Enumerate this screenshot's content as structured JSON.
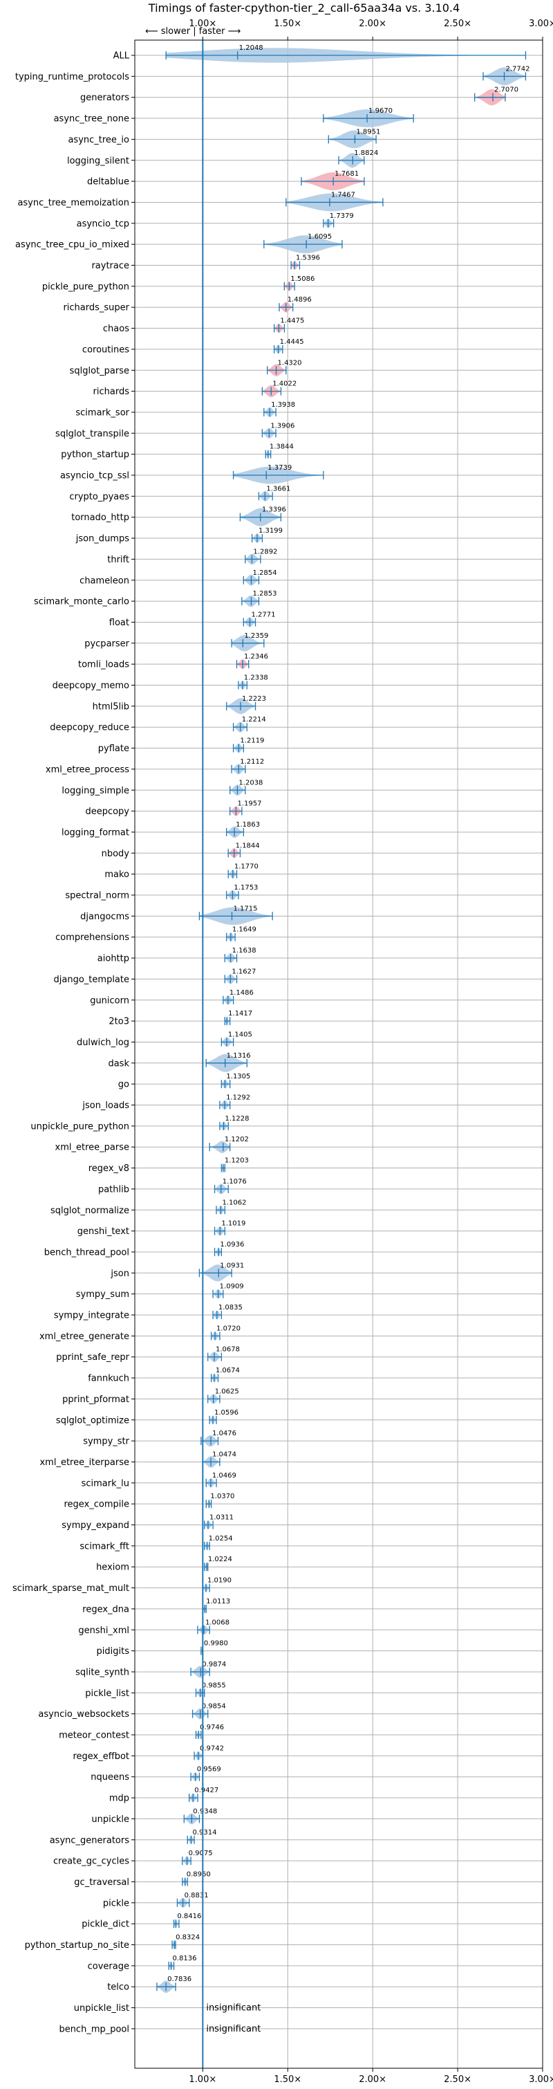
{
  "chart_data": {
    "type": "violin",
    "title": "Timings of faster-cpython-tier_2_call-65aa34a vs. 3.10.4",
    "direction_label": "⟵ slower | faster ⟶",
    "x_ticks": [
      "1.00×",
      "1.50×",
      "2.00×",
      "2.50×",
      "3.00×"
    ],
    "x_tick_values": [
      1.0,
      1.5,
      2.0,
      2.5,
      3.0
    ],
    "xlim": [
      0.6,
      3.0
    ],
    "reference_line": 1.0,
    "grid": true,
    "colors": {
      "faster": "#a9c8e4",
      "slower": "#f4aab4",
      "line": "#1f77b4",
      "grid": "#b0b0b0"
    },
    "benchmarks": [
      {
        "name": "ALL",
        "value": 1.2048,
        "label": "1.2048",
        "min": 0.7836,
        "max": 2.9,
        "color": "blue"
      },
      {
        "name": "typing_runtime_protocols",
        "value": 2.7742,
        "label": "2.7742",
        "min": 2.65,
        "max": 2.9,
        "color": "blue"
      },
      {
        "name": "generators",
        "value": 2.707,
        "label": "2.7070",
        "min": 2.6,
        "max": 2.78,
        "color": "red"
      },
      {
        "name": "async_tree_none",
        "value": 1.967,
        "label": "1.9670",
        "min": 1.71,
        "max": 2.24,
        "color": "blue"
      },
      {
        "name": "async_tree_io",
        "value": 1.8951,
        "label": "1.8951",
        "min": 1.74,
        "max": 2.02,
        "color": "blue"
      },
      {
        "name": "logging_silent",
        "value": 1.8824,
        "label": "1.8824",
        "min": 1.8,
        "max": 1.95,
        "color": "blue"
      },
      {
        "name": "deltablue",
        "value": 1.7681,
        "label": "1.7681",
        "min": 1.58,
        "max": 1.95,
        "color": "red"
      },
      {
        "name": "async_tree_memoization",
        "value": 1.7467,
        "label": "1.7467",
        "min": 1.49,
        "max": 2.06,
        "color": "blue"
      },
      {
        "name": "asyncio_tcp",
        "value": 1.7379,
        "label": "1.7379",
        "min": 1.71,
        "max": 1.77,
        "color": "blue"
      },
      {
        "name": "async_tree_cpu_io_mixed",
        "value": 1.6095,
        "label": "1.6095",
        "min": 1.36,
        "max": 1.82,
        "color": "blue"
      },
      {
        "name": "raytrace",
        "value": 1.5396,
        "label": "1.5396",
        "min": 1.52,
        "max": 1.57,
        "color": "red"
      },
      {
        "name": "pickle_pure_python",
        "value": 1.5086,
        "label": "1.5086",
        "min": 1.48,
        "max": 1.54,
        "color": "red"
      },
      {
        "name": "richards_super",
        "value": 1.4896,
        "label": "1.4896",
        "min": 1.45,
        "max": 1.53,
        "color": "red"
      },
      {
        "name": "chaos",
        "value": 1.4475,
        "label": "1.4475",
        "min": 1.42,
        "max": 1.48,
        "color": "red"
      },
      {
        "name": "coroutines",
        "value": 1.4445,
        "label": "1.4445",
        "min": 1.42,
        "max": 1.47,
        "color": "blue"
      },
      {
        "name": "sqlglot_parse",
        "value": 1.432,
        "label": "1.4320",
        "min": 1.38,
        "max": 1.49,
        "color": "red"
      },
      {
        "name": "richards",
        "value": 1.4022,
        "label": "1.4022",
        "min": 1.35,
        "max": 1.46,
        "color": "red"
      },
      {
        "name": "scimark_sor",
        "value": 1.3938,
        "label": "1.3938",
        "min": 1.36,
        "max": 1.43,
        "color": "blue"
      },
      {
        "name": "sqlglot_transpile",
        "value": 1.3906,
        "label": "1.3906",
        "min": 1.35,
        "max": 1.43,
        "color": "blue"
      },
      {
        "name": "python_startup",
        "value": 1.3844,
        "label": "1.3844",
        "min": 1.37,
        "max": 1.4,
        "color": "blue"
      },
      {
        "name": "asyncio_tcp_ssl",
        "value": 1.3739,
        "label": "1.3739",
        "min": 1.18,
        "max": 1.71,
        "color": "blue"
      },
      {
        "name": "crypto_pyaes",
        "value": 1.3661,
        "label": "1.3661",
        "min": 1.33,
        "max": 1.41,
        "color": "blue"
      },
      {
        "name": "tornado_http",
        "value": 1.3396,
        "label": "1.3396",
        "min": 1.22,
        "max": 1.46,
        "color": "blue"
      },
      {
        "name": "json_dumps",
        "value": 1.3199,
        "label": "1.3199",
        "min": 1.29,
        "max": 1.35,
        "color": "blue"
      },
      {
        "name": "thrift",
        "value": 1.2892,
        "label": "1.2892",
        "min": 1.25,
        "max": 1.34,
        "color": "blue"
      },
      {
        "name": "chameleon",
        "value": 1.2854,
        "label": "1.2854",
        "min": 1.24,
        "max": 1.33,
        "color": "blue"
      },
      {
        "name": "scimark_monte_carlo",
        "value": 1.2853,
        "label": "1.2853",
        "min": 1.23,
        "max": 1.33,
        "color": "blue"
      },
      {
        "name": "float",
        "value": 1.2771,
        "label": "1.2771",
        "min": 1.24,
        "max": 1.31,
        "color": "blue"
      },
      {
        "name": "pycparser",
        "value": 1.2359,
        "label": "1.2359",
        "min": 1.17,
        "max": 1.36,
        "color": "blue"
      },
      {
        "name": "tomli_loads",
        "value": 1.2346,
        "label": "1.2346",
        "min": 1.2,
        "max": 1.27,
        "color": "red"
      },
      {
        "name": "deepcopy_memo",
        "value": 1.2338,
        "label": "1.2338",
        "min": 1.21,
        "max": 1.26,
        "color": "blue"
      },
      {
        "name": "html5lib",
        "value": 1.2223,
        "label": "1.2223",
        "min": 1.14,
        "max": 1.31,
        "color": "blue"
      },
      {
        "name": "deepcopy_reduce",
        "value": 1.2214,
        "label": "1.2214",
        "min": 1.18,
        "max": 1.26,
        "color": "blue"
      },
      {
        "name": "pyflate",
        "value": 1.2119,
        "label": "1.2119",
        "min": 1.18,
        "max": 1.24,
        "color": "blue"
      },
      {
        "name": "xml_etree_process",
        "value": 1.2112,
        "label": "1.2112",
        "min": 1.17,
        "max": 1.25,
        "color": "blue"
      },
      {
        "name": "logging_simple",
        "value": 1.2038,
        "label": "1.2038",
        "min": 1.16,
        "max": 1.25,
        "color": "blue"
      },
      {
        "name": "deepcopy",
        "value": 1.1957,
        "label": "1.1957",
        "min": 1.16,
        "max": 1.23,
        "color": "red"
      },
      {
        "name": "logging_format",
        "value": 1.1863,
        "label": "1.1863",
        "min": 1.14,
        "max": 1.24,
        "color": "blue"
      },
      {
        "name": "nbody",
        "value": 1.1844,
        "label": "1.1844",
        "min": 1.15,
        "max": 1.22,
        "color": "red"
      },
      {
        "name": "mako",
        "value": 1.177,
        "label": "1.1770",
        "min": 1.15,
        "max": 1.2,
        "color": "blue"
      },
      {
        "name": "spectral_norm",
        "value": 1.1753,
        "label": "1.1753",
        "min": 1.14,
        "max": 1.21,
        "color": "blue"
      },
      {
        "name": "djangocms",
        "value": 1.1715,
        "label": "1.1715",
        "min": 0.98,
        "max": 1.41,
        "color": "blue"
      },
      {
        "name": "comprehensions",
        "value": 1.1649,
        "label": "1.1649",
        "min": 1.14,
        "max": 1.19,
        "color": "blue"
      },
      {
        "name": "aiohttp",
        "value": 1.1638,
        "label": "1.1638",
        "min": 1.13,
        "max": 1.2,
        "color": "blue"
      },
      {
        "name": "django_template",
        "value": 1.1627,
        "label": "1.1627",
        "min": 1.13,
        "max": 1.2,
        "color": "blue"
      },
      {
        "name": "gunicorn",
        "value": 1.1486,
        "label": "1.1486",
        "min": 1.12,
        "max": 1.18,
        "color": "blue"
      },
      {
        "name": "2to3",
        "value": 1.1417,
        "label": "1.1417",
        "min": 1.13,
        "max": 1.16,
        "color": "blue"
      },
      {
        "name": "dulwich_log",
        "value": 1.1405,
        "label": "1.1405",
        "min": 1.11,
        "max": 1.18,
        "color": "blue"
      },
      {
        "name": "dask",
        "value": 1.1316,
        "label": "1.1316",
        "min": 1.02,
        "max": 1.26,
        "color": "blue"
      },
      {
        "name": "go",
        "value": 1.1305,
        "label": "1.1305",
        "min": 1.11,
        "max": 1.16,
        "color": "blue"
      },
      {
        "name": "json_loads",
        "value": 1.1292,
        "label": "1.1292",
        "min": 1.1,
        "max": 1.16,
        "color": "blue"
      },
      {
        "name": "unpickle_pure_python",
        "value": 1.1228,
        "label": "1.1228",
        "min": 1.1,
        "max": 1.15,
        "color": "blue"
      },
      {
        "name": "xml_etree_parse",
        "value": 1.1202,
        "label": "1.1202",
        "min": 1.04,
        "max": 1.16,
        "color": "blue"
      },
      {
        "name": "regex_v8",
        "value": 1.1203,
        "label": "1.1203",
        "min": 1.11,
        "max": 1.13,
        "color": "blue"
      },
      {
        "name": "pathlib",
        "value": 1.1076,
        "label": "1.1076",
        "min": 1.07,
        "max": 1.15,
        "color": "blue"
      },
      {
        "name": "sqlglot_normalize",
        "value": 1.1062,
        "label": "1.1062",
        "min": 1.08,
        "max": 1.13,
        "color": "blue"
      },
      {
        "name": "genshi_text",
        "value": 1.1019,
        "label": "1.1019",
        "min": 1.07,
        "max": 1.13,
        "color": "blue"
      },
      {
        "name": "bench_thread_pool",
        "value": 1.0936,
        "label": "1.0936",
        "min": 1.07,
        "max": 1.11,
        "color": "blue"
      },
      {
        "name": "json",
        "value": 1.0931,
        "label": "1.0931",
        "min": 0.98,
        "max": 1.17,
        "color": "blue"
      },
      {
        "name": "sympy_sum",
        "value": 1.0909,
        "label": "1.0909",
        "min": 1.06,
        "max": 1.12,
        "color": "blue"
      },
      {
        "name": "sympy_integrate",
        "value": 1.0835,
        "label": "1.0835",
        "min": 1.06,
        "max": 1.11,
        "color": "blue"
      },
      {
        "name": "xml_etree_generate",
        "value": 1.072,
        "label": "1.0720",
        "min": 1.05,
        "max": 1.1,
        "color": "blue"
      },
      {
        "name": "pprint_safe_repr",
        "value": 1.0678,
        "label": "1.0678",
        "min": 1.03,
        "max": 1.11,
        "color": "blue"
      },
      {
        "name": "fannkuch",
        "value": 1.0674,
        "label": "1.0674",
        "min": 1.05,
        "max": 1.09,
        "color": "blue"
      },
      {
        "name": "pprint_pformat",
        "value": 1.0625,
        "label": "1.0625",
        "min": 1.03,
        "max": 1.1,
        "color": "blue"
      },
      {
        "name": "sqlglot_optimize",
        "value": 1.0596,
        "label": "1.0596",
        "min": 1.04,
        "max": 1.08,
        "color": "blue"
      },
      {
        "name": "sympy_str",
        "value": 1.0476,
        "label": "1.0476",
        "min": 0.99,
        "max": 1.09,
        "color": "blue"
      },
      {
        "name": "xml_etree_iterparse",
        "value": 1.0474,
        "label": "1.0474",
        "min": 1.0,
        "max": 1.1,
        "color": "blue"
      },
      {
        "name": "scimark_lu",
        "value": 1.0469,
        "label": "1.0469",
        "min": 1.02,
        "max": 1.08,
        "color": "blue"
      },
      {
        "name": "regex_compile",
        "value": 1.037,
        "label": "1.0370",
        "min": 1.02,
        "max": 1.05,
        "color": "blue"
      },
      {
        "name": "sympy_expand",
        "value": 1.0311,
        "label": "1.0311",
        "min": 1.01,
        "max": 1.06,
        "color": "blue"
      },
      {
        "name": "scimark_fft",
        "value": 1.0254,
        "label": "1.0254",
        "min": 1.01,
        "max": 1.04,
        "color": "blue"
      },
      {
        "name": "hexiom",
        "value": 1.0224,
        "label": "1.0224",
        "min": 1.01,
        "max": 1.03,
        "color": "blue"
      },
      {
        "name": "scimark_sparse_mat_mult",
        "value": 1.019,
        "label": "1.0190",
        "min": 1.0,
        "max": 1.04,
        "color": "blue"
      },
      {
        "name": "regex_dna",
        "value": 1.0113,
        "label": "1.0113",
        "min": 1.0,
        "max": 1.02,
        "color": "blue"
      },
      {
        "name": "genshi_xml",
        "value": 1.0068,
        "label": "1.0068",
        "min": 0.97,
        "max": 1.04,
        "color": "blue"
      },
      {
        "name": "pidigits",
        "value": 0.998,
        "label": "0.9980",
        "min": 0.99,
        "max": 1.0,
        "color": "blue"
      },
      {
        "name": "sqlite_synth",
        "value": 0.9874,
        "label": "0.9874",
        "min": 0.93,
        "max": 1.04,
        "color": "blue"
      },
      {
        "name": "pickle_list",
        "value": 0.9855,
        "label": "0.9855",
        "min": 0.96,
        "max": 1.01,
        "color": "blue"
      },
      {
        "name": "asyncio_websockets",
        "value": 0.9854,
        "label": "0.9854",
        "min": 0.94,
        "max": 1.03,
        "color": "blue"
      },
      {
        "name": "meteor_contest",
        "value": 0.9746,
        "label": "0.9746",
        "min": 0.96,
        "max": 0.99,
        "color": "blue"
      },
      {
        "name": "regex_effbot",
        "value": 0.9742,
        "label": "0.9742",
        "min": 0.95,
        "max": 1.0,
        "color": "blue"
      },
      {
        "name": "nqueens",
        "value": 0.9569,
        "label": "0.9569",
        "min": 0.93,
        "max": 0.98,
        "color": "blue"
      },
      {
        "name": "mdp",
        "value": 0.9427,
        "label": "0.9427",
        "min": 0.92,
        "max": 0.97,
        "color": "blue"
      },
      {
        "name": "unpickle",
        "value": 0.9348,
        "label": "0.9348",
        "min": 0.89,
        "max": 0.98,
        "color": "blue"
      },
      {
        "name": "async_generators",
        "value": 0.9314,
        "label": "0.9314",
        "min": 0.91,
        "max": 0.95,
        "color": "blue"
      },
      {
        "name": "create_gc_cycles",
        "value": 0.9075,
        "label": "0.9075",
        "min": 0.88,
        "max": 0.93,
        "color": "blue"
      },
      {
        "name": "gc_traversal",
        "value": 0.896,
        "label": "0.8960",
        "min": 0.88,
        "max": 0.91,
        "color": "blue"
      },
      {
        "name": "pickle",
        "value": 0.8831,
        "label": "0.8831",
        "min": 0.85,
        "max": 0.92,
        "color": "blue"
      },
      {
        "name": "pickle_dict",
        "value": 0.8416,
        "label": "0.8416",
        "min": 0.83,
        "max": 0.86,
        "color": "blue"
      },
      {
        "name": "python_startup_no_site",
        "value": 0.8324,
        "label": "0.8324",
        "min": 0.82,
        "max": 0.84,
        "color": "blue"
      },
      {
        "name": "coverage",
        "value": 0.8136,
        "label": "0.8136",
        "min": 0.8,
        "max": 0.83,
        "color": "blue"
      },
      {
        "name": "telco",
        "value": 0.7836,
        "label": "0.7836",
        "min": 0.73,
        "max": 0.84,
        "color": "blue"
      },
      {
        "name": "unpickle_list",
        "value": null,
        "label": "insignificant",
        "color": "none"
      },
      {
        "name": "bench_mp_pool",
        "value": null,
        "label": "insignificant",
        "color": "none"
      }
    ]
  }
}
